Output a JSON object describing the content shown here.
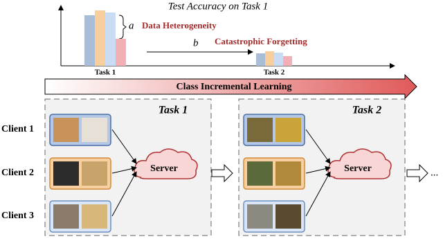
{
  "chart": {
    "type": "bar",
    "title": "Test Accuracy on Task 1",
    "categories": [
      "Task 1",
      "Task 2"
    ],
    "series": [
      {
        "color": "#a9bdd6",
        "values": [
          73,
          18
        ]
      },
      {
        "color": "#f8cf9c",
        "values": [
          80,
          21
        ]
      },
      {
        "color": "#c9dcf4",
        "values": [
          77,
          19
        ]
      },
      {
        "color": "#f3b0b4",
        "values": [
          39,
          14
        ]
      }
    ],
    "annotations": {
      "a": "a",
      "a_text": "Data Heterogeneity",
      "b": "b",
      "b_text": "Catastrophic Forgetting"
    }
  },
  "banner": "Class Incremental Learning",
  "clients": [
    "Client 1",
    "Client 2",
    "Client 3"
  ],
  "panels": [
    {
      "title": "Task 1",
      "server": "Server"
    },
    {
      "title": "Task 2",
      "server": "Server"
    }
  ],
  "ellipsis": "..."
}
